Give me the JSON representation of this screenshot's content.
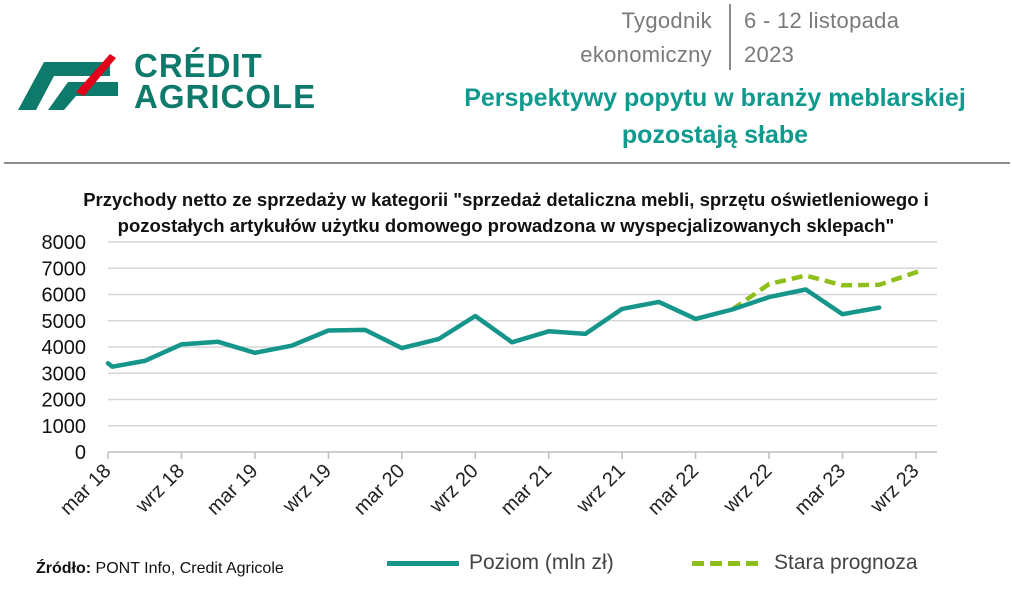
{
  "header": {
    "brand_line1": "CRÉDIT",
    "brand_line2": "AGRICOLE",
    "publication_line1": "Tygodnik",
    "publication_line2": "ekonomiczny",
    "date_line1": "6 - 12 listopada",
    "date_line2": "2023",
    "headline_line1": "Perspektywy popytu w branży meblarskiej",
    "headline_line2": "pozostają słabe",
    "brand_color": "#0e7a6c",
    "brand_accent_color": "#e2001a",
    "headline_color": "#0f9a8e"
  },
  "chart_data": {
    "type": "line",
    "title_line1": "Przychody netto ze sprzedaży w kategorii \"sprzedaż detaliczna mebli, sprzętu oświetleniowego i",
    "title_line2": "pozostałych artykułów użytku domowego prowadzona w wyspecjalizowanych sklepach\"",
    "ylim": [
      0,
      8000
    ],
    "yticks": [
      0,
      1000,
      2000,
      3000,
      4000,
      5000,
      6000,
      7000,
      8000
    ],
    "grid": true,
    "x_tick_labels": [
      "mar 18",
      "wrz 18",
      "mar 19",
      "wrz 19",
      "mar 20",
      "wrz 20",
      "mar 21",
      "wrz 21",
      "mar 22",
      "wrz 22",
      "mar 23",
      "wrz 23"
    ],
    "x_unit": "quarter index (0 = I kw. 2018)",
    "series": [
      {
        "name": "Poziom (mln zł)",
        "color": "#16958a",
        "style": "solid",
        "x": [
          0,
          0.12,
          1,
          2,
          3,
          4,
          5,
          6,
          7,
          8,
          9,
          10,
          11,
          12,
          13,
          14,
          15,
          16,
          17,
          18,
          19,
          20,
          21,
          22
        ],
        "values": [
          3380,
          3250,
          3470,
          4100,
          4200,
          3780,
          4050,
          4630,
          4650,
          3960,
          4300,
          5180,
          4180,
          4600,
          4500,
          5450,
          5720,
          5070,
          5430,
          5900,
          6190,
          5250,
          5500,
          null
        ]
      },
      {
        "name": "Stara prognoza",
        "color": "#8fbf1d",
        "style": "dashed",
        "x": [
          17,
          18,
          19,
          20,
          21,
          22.2
        ],
        "values": [
          5430,
          6400,
          6720,
          6350,
          6370,
          6940
        ]
      }
    ],
    "legend_position": "bottom"
  },
  "footer": {
    "source_label": "Źródło:",
    "source_text": " PONT Info, Credit Agricole"
  }
}
